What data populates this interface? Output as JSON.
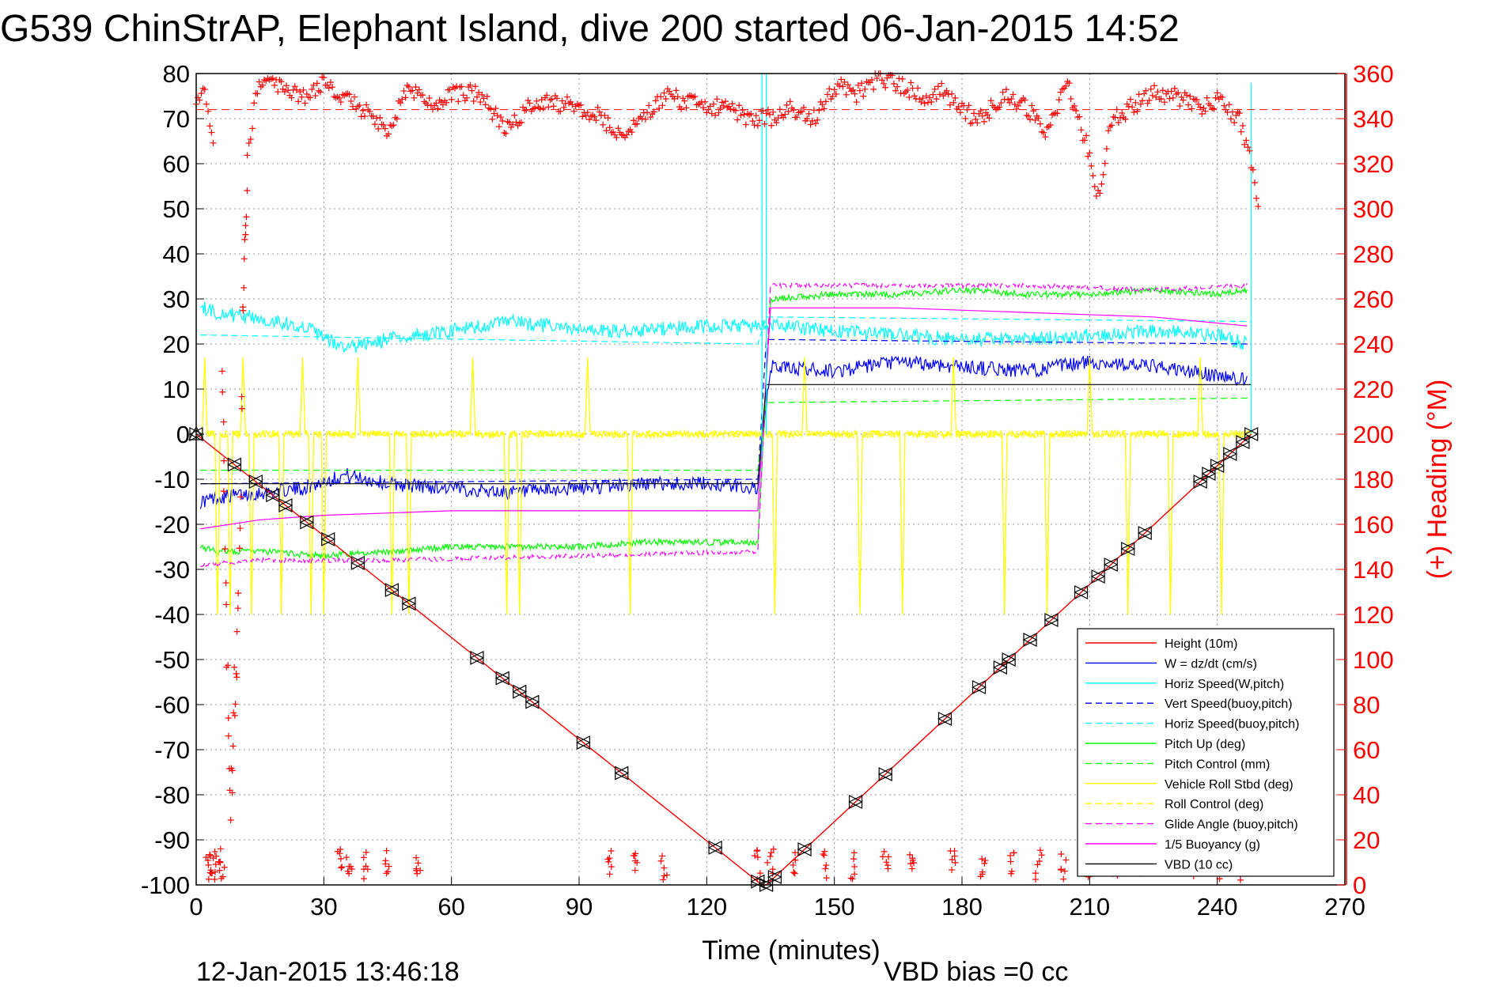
{
  "chart_data": {
    "type": "line",
    "title": "G539 ChinStrAP, Elephant Island, dive 200 started 06-Jan-2015 14:52",
    "xlabel": "Time (minutes)",
    "ylabel_right": "(+) Heading (°M)",
    "xlim": [
      0,
      270
    ],
    "ylim": [
      -100,
      80
    ],
    "y2lim": [
      0,
      360
    ],
    "xticks": [
      "0",
      "30",
      "60",
      "90",
      "120",
      "150",
      "180",
      "210",
      "240",
      "270"
    ],
    "yticks": [
      "80",
      "70",
      "60",
      "50",
      "40",
      "30",
      "20",
      "10",
      "0",
      "-10",
      "-20",
      "-30",
      "-40",
      "-50",
      "-60",
      "-70",
      "-80",
      "-90",
      "-100"
    ],
    "y2ticks": [
      "360",
      "340",
      "320",
      "300",
      "280",
      "260",
      "240",
      "220",
      "200",
      "180",
      "160",
      "140",
      "120",
      "100",
      "80",
      "60",
      "40",
      "20",
      "0"
    ],
    "grid": true,
    "legend_position": "bottom-right",
    "footer_date": "12-Jan-2015 13:46:18",
    "footer_bias": "VBD bias =0 cc",
    "legend": [
      {
        "label": "Height (10m)",
        "color": "#ff0000",
        "dash": "solid"
      },
      {
        "label": "W = dz/dt (cm/s)",
        "color": "#0000ff",
        "dash": "solid"
      },
      {
        "label": "Horiz Speed(W,pitch)",
        "color": "#00ffff",
        "dash": "solid"
      },
      {
        "label": "Vert Speed(buoy,pitch)",
        "color": "#0000ff",
        "dash": "dashed"
      },
      {
        "label": "Horiz Speed(buoy,pitch)",
        "color": "#00ffff",
        "dash": "dashed"
      },
      {
        "label": "Pitch Up (deg)",
        "color": "#00ff00",
        "dash": "solid"
      },
      {
        "label": "Pitch Control (mm)",
        "color": "#00ff00",
        "dash": "dashed"
      },
      {
        "label": "Vehicle Roll Stbd (deg)",
        "color": "#ffff00",
        "dash": "solid"
      },
      {
        "label": "Roll Control (deg)",
        "color": "#ffff00",
        "dash": "dashed"
      },
      {
        "label": "Glide Angle (buoy,pitch)",
        "color": "#ff00ff",
        "dash": "dashed"
      },
      {
        "label": "1/5 Buoyancy (g)",
        "color": "#ff00ff",
        "dash": "solid"
      },
      {
        "label": "VBD (10 cc)",
        "color": "#000000",
        "dash": "solid"
      }
    ],
    "heading_reference": 344,
    "series": [
      {
        "name": "Height (10m)",
        "color": "#ff0000",
        "dash": "solid",
        "x": [
          0,
          133,
          134,
          248
        ],
        "y": [
          0,
          -100,
          -100,
          0
        ]
      },
      {
        "name": "W = dz/dt (cm/s)",
        "color": "#0000ff",
        "dash": "solid",
        "x": [
          1,
          5,
          15,
          25,
          35,
          45,
          60,
          75,
          90,
          105,
          120,
          132,
          135,
          150,
          165,
          180,
          195,
          210,
          225,
          240,
          247
        ],
        "y": [
          -15,
          -14,
          -13,
          -12,
          -9,
          -11,
          -12,
          -13,
          -12,
          -11,
          -11,
          -12,
          15,
          14,
          16,
          15,
          14,
          16,
          15,
          13,
          12
        ]
      },
      {
        "name": "Horiz Speed(W,pitch)",
        "color": "#00ffff",
        "dash": "solid",
        "x": [
          1,
          5,
          12,
          25,
          35,
          45,
          60,
          75,
          90,
          105,
          120,
          132,
          135,
          150,
          165,
          180,
          195,
          210,
          225,
          240,
          247
        ],
        "y": [
          28,
          27,
          26,
          24,
          19,
          21,
          23,
          25,
          23,
          23,
          24,
          24,
          24,
          23,
          22,
          21,
          21,
          22,
          23,
          22,
          20
        ]
      },
      {
        "name": "Vert Speed(buoy,pitch)",
        "color": "#0000ff",
        "dash": "dashed",
        "x": [
          1,
          132,
          134,
          248
        ],
        "y": [
          -11,
          -10,
          21,
          20
        ]
      },
      {
        "name": "Horiz Speed(buoy,pitch)",
        "color": "#00ffff",
        "dash": "dashed",
        "x": [
          1,
          132,
          134,
          248
        ],
        "y": [
          22,
          20,
          26,
          25
        ]
      },
      {
        "name": "Pitch Up (deg)",
        "color": "#00ff00",
        "dash": "solid",
        "x": [
          1,
          5,
          15,
          30,
          45,
          60,
          75,
          90,
          105,
          120,
          132,
          135,
          150,
          165,
          180,
          195,
          210,
          225,
          240,
          247
        ],
        "y": [
          -25,
          -26,
          -26,
          -27,
          -26,
          -25,
          -25,
          -25,
          -24,
          -24,
          -24,
          30,
          31,
          31,
          32,
          31,
          31,
          32,
          31,
          32
        ]
      },
      {
        "name": "Pitch Control (mm)",
        "color": "#00ff00",
        "dash": "dashed",
        "x": [
          1,
          132,
          134,
          248
        ],
        "y": [
          -8,
          -8,
          7,
          8
        ]
      },
      {
        "name": "Vehicle Roll Stbd (deg)",
        "color": "#ffff00",
        "dash": "solid",
        "x": [
          1,
          248
        ],
        "y": [
          0,
          0
        ]
      },
      {
        "name": "Roll Control (deg)",
        "color": "#ffff00",
        "dash": "dashed",
        "x": [
          1,
          248
        ],
        "y": [
          0,
          0
        ]
      },
      {
        "name": "Glide Angle (buoy,pitch)",
        "color": "#ff00ff",
        "dash": "dashed",
        "x": [
          1,
          15,
          45,
          90,
          132,
          135,
          165,
          195,
          225,
          247
        ],
        "y": [
          -29,
          -28,
          -28,
          -27,
          -26,
          33,
          33,
          33,
          32,
          33
        ]
      },
      {
        "name": "1/5 Buoyancy (g)",
        "color": "#ff00ff",
        "dash": "solid",
        "x": [
          1,
          15,
          30,
          60,
          90,
          132,
          135,
          165,
          195,
          225,
          247
        ],
        "y": [
          -21,
          -19,
          -18,
          -17,
          -17,
          -17,
          28,
          28,
          27,
          26,
          24
        ]
      },
      {
        "name": "VBD (10 cc)",
        "color": "#000000",
        "dash": "solid",
        "x": [
          1,
          132,
          134,
          248
        ],
        "y": [
          -11,
          -11,
          11,
          11
        ]
      }
    ],
    "markers_down": [
      0,
      9,
      14,
      18,
      21,
      26,
      31,
      38,
      46,
      50,
      66,
      72,
      76,
      79,
      91,
      100,
      122,
      132
    ],
    "markers_up": [
      134,
      136,
      143,
      155,
      162,
      176,
      184,
      189,
      191,
      196,
      201,
      208,
      212,
      215,
      219,
      223,
      236,
      238,
      240,
      243,
      246,
      248
    ],
    "heading": {
      "x": [
        0,
        2,
        4,
        6,
        8,
        10,
        11,
        12,
        14,
        16,
        20,
        25,
        30,
        35,
        40,
        45,
        50,
        55,
        60,
        65,
        70,
        73,
        80,
        90,
        95,
        100,
        110,
        120,
        125,
        130,
        133,
        135,
        140,
        145,
        150,
        155,
        160,
        165,
        170,
        175,
        180,
        185,
        190,
        195,
        200,
        205,
        208,
        210,
        212,
        215,
        220,
        225,
        230,
        235,
        240,
        245,
        248,
        250
      ],
      "y": [
        345,
        355,
        330,
        225,
        30,
        120,
        250,
        320,
        352,
        356,
        353,
        350,
        356,
        348,
        343,
        335,
        355,
        345,
        350,
        352,
        343,
        335,
        348,
        345,
        342,
        330,
        350,
        345,
        345,
        340,
        340,
        340,
        345,
        340,
        355,
        350,
        358,
        355,
        350,
        352,
        343,
        340,
        352,
        345,
        335,
        355,
        335,
        325,
        305,
        340,
        345,
        352,
        350,
        345,
        348,
        340,
        320,
        295
      ],
      "near_zero_x": [
        3,
        4,
        5,
        6,
        34,
        36,
        40,
        45,
        52,
        97,
        103,
        110,
        132,
        135,
        141,
        148,
        154,
        162,
        168,
        178,
        185,
        192,
        198,
        204,
        210,
        216,
        222,
        228,
        234,
        240,
        246
      ]
    }
  }
}
